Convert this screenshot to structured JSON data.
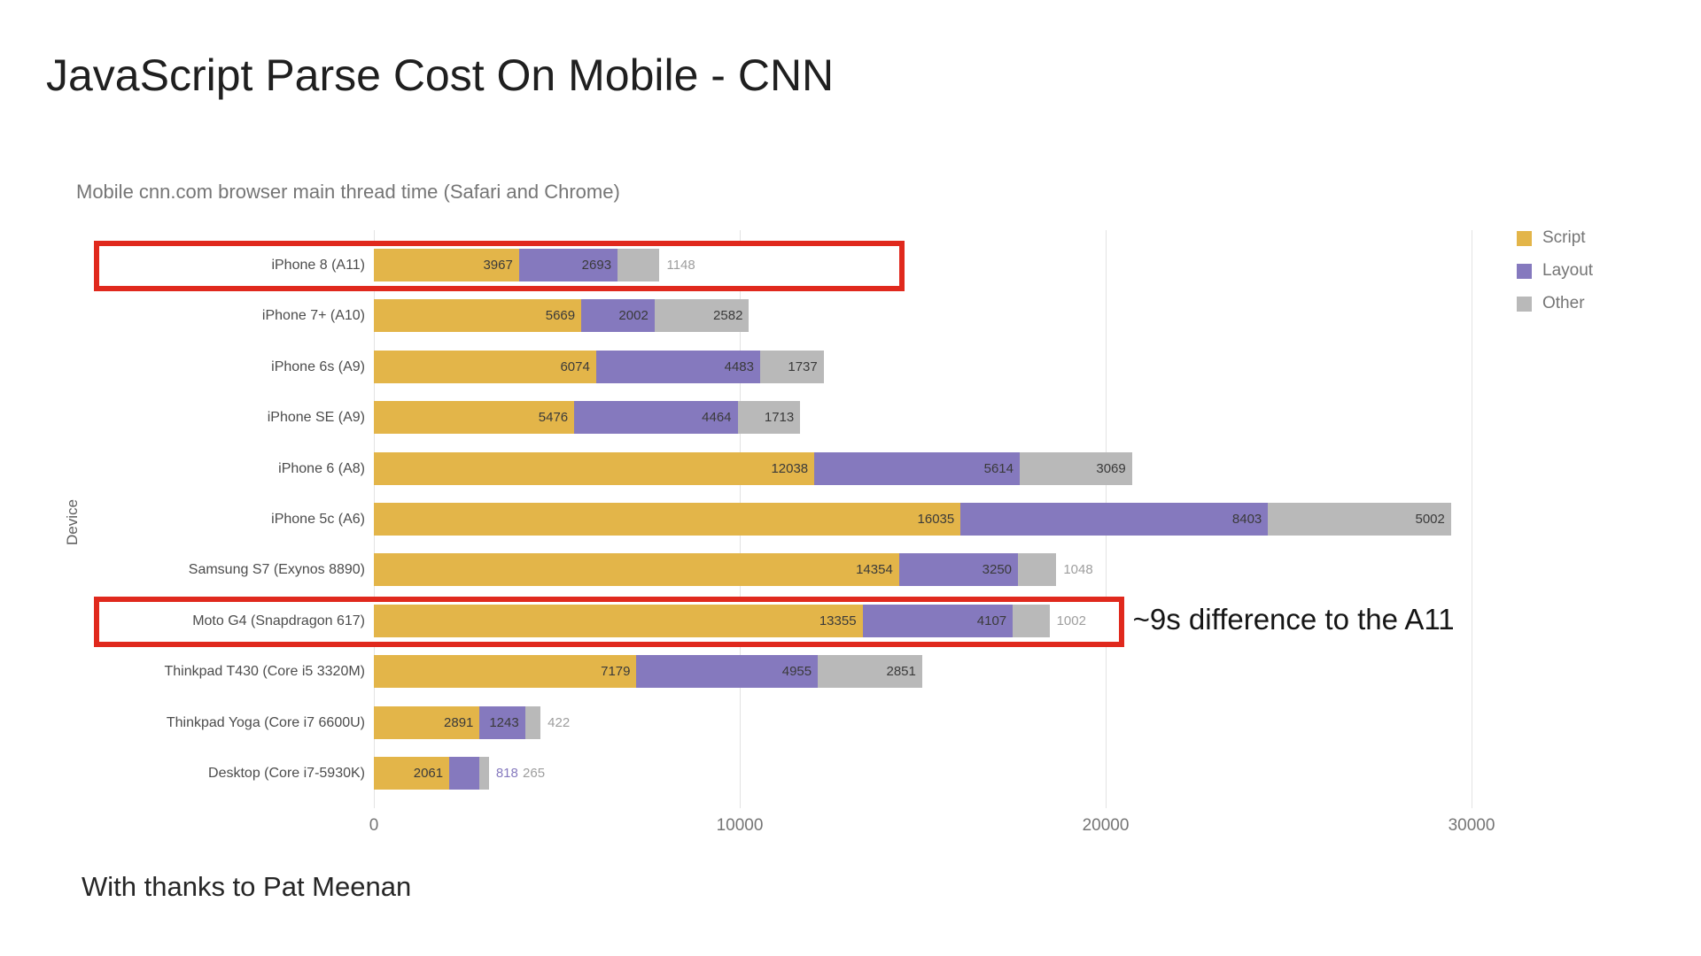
{
  "page": {
    "footer": "With thanks to Pat Meenan"
  },
  "chart_data": {
    "type": "bar",
    "stacked": true,
    "orientation": "horizontal",
    "title": "JavaScript Parse Cost On Mobile - CNN",
    "subtitle": "Mobile cnn.com browser main thread time (Safari and Chrome)",
    "xlabel": "",
    "ylabel": "Device",
    "xlim": [
      0,
      30000
    ],
    "x_ticks": [
      0,
      10000,
      20000,
      30000
    ],
    "grid": true,
    "legend_position": "top-right",
    "highlight_color": "#e0291d",
    "series": [
      {
        "name": "Script",
        "color": "#e3b549"
      },
      {
        "name": "Layout",
        "color": "#8579be"
      },
      {
        "name": "Other",
        "color": "#b9b9b9"
      }
    ],
    "outside_label_colors": [
      "#c9a03f",
      "#8579be",
      "#9e9e9e"
    ],
    "rows": [
      {
        "device": "iPhone 8 (A11)",
        "values": [
          3967,
          2693,
          1148
        ],
        "highlight": true,
        "highlight_to_value": 14500
      },
      {
        "device": "iPhone 7+ (A10)",
        "values": [
          5669,
          2002,
          2582
        ]
      },
      {
        "device": "iPhone 6s (A9)",
        "values": [
          6074,
          4483,
          1737
        ]
      },
      {
        "device": "iPhone SE (A9)",
        "values": [
          5476,
          4464,
          1713
        ]
      },
      {
        "device": "iPhone 6 (A8)",
        "values": [
          12038,
          5614,
          3069
        ]
      },
      {
        "device": "iPhone 5c (A6)",
        "values": [
          16035,
          8403,
          5002
        ]
      },
      {
        "device": "Samsung S7 (Exynos 8890)",
        "values": [
          14354,
          3250,
          1048
        ]
      },
      {
        "device": "Moto G4 (Snapdragon 617)",
        "values": [
          13355,
          4107,
          1002
        ],
        "highlight": true,
        "highlight_to_value": 20500,
        "annotation": "~9s difference to the A11"
      },
      {
        "device": "Thinkpad T430 (Core i5 3320M)",
        "values": [
          7179,
          4955,
          2851
        ]
      },
      {
        "device": "Thinkpad Yoga (Core i7 6600U)",
        "values": [
          2891,
          1243,
          422
        ]
      },
      {
        "device": "Desktop (Core i7-5930K)",
        "values": [
          2061,
          818,
          265
        ]
      }
    ]
  }
}
